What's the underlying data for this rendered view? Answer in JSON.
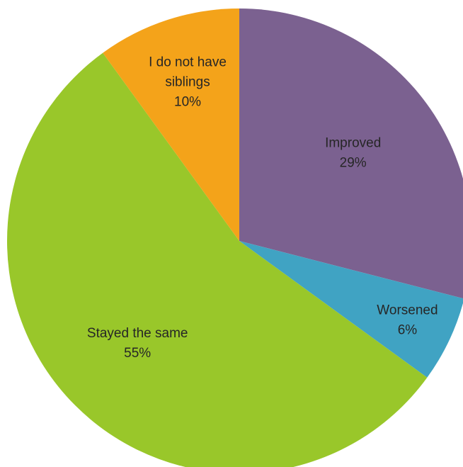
{
  "chart_data": {
    "type": "pie",
    "slices": [
      {
        "label_lines": [
          "Improved"
        ],
        "percent_label": "29%",
        "value": 29,
        "color": "#7b6190"
      },
      {
        "label_lines": [
          "Worsened"
        ],
        "percent_label": "6%",
        "value": 6,
        "color": "#40a3c3"
      },
      {
        "label_lines": [
          "Stayed the same"
        ],
        "percent_label": "55%",
        "value": 55,
        "color": "#99c72a"
      },
      {
        "label_lines": [
          "I do not have",
          "siblings"
        ],
        "percent_label": "10%",
        "value": 10,
        "color": "#f4a31a"
      }
    ],
    "start_angle_deg": 0,
    "direction": "clockwise",
    "legend": "none",
    "title": ""
  }
}
